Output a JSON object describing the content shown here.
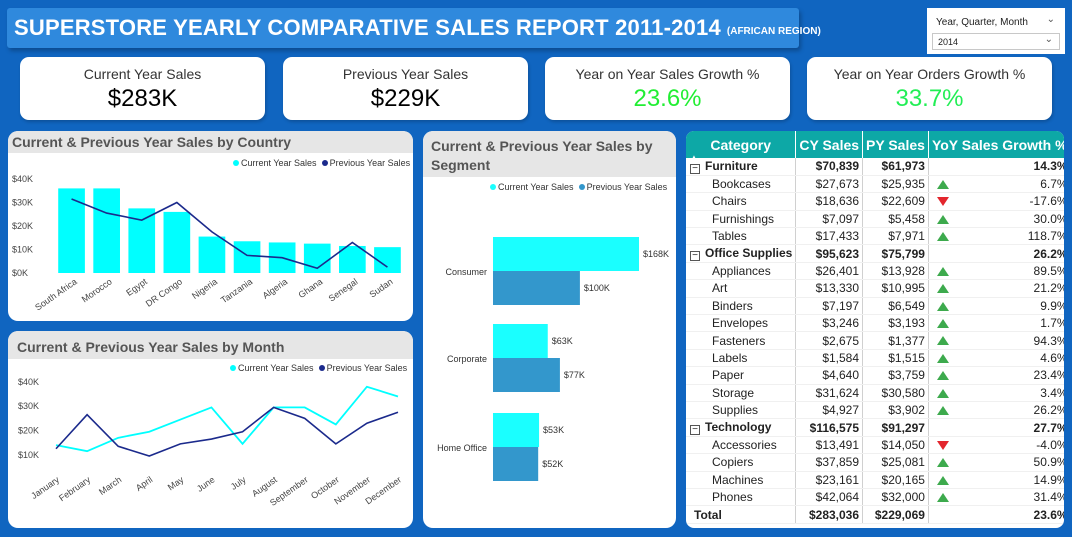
{
  "title": {
    "main": "SUPERSTORE YEARLY COMPARATIVE SALES REPORT 2011-2014",
    "sub": "(AFRICAN REGION)"
  },
  "slicer": {
    "label": "Year, Quarter, Month",
    "selected": "2014"
  },
  "kpis": [
    {
      "label": "Current Year Sales",
      "value": "$283K",
      "color": "#000000"
    },
    {
      "label": "Previous Year Sales",
      "value": "$229K",
      "color": "#000000"
    },
    {
      "label": "Year on Year Sales Growth %",
      "value": "23.6%",
      "color": "#22ee33"
    },
    {
      "label": "Year on Year Orders Growth %",
      "value": "33.7%",
      "color": "#22ee55"
    }
  ],
  "colors": {
    "cy": "#00ffff",
    "py": "#1b2a8c",
    "cy_seg": "#1affff",
    "py_seg": "#3397cc"
  },
  "legend": {
    "cy": "Current Year Sales",
    "py": "Previous Year Sales"
  },
  "chart_data": [
    {
      "type": "bar",
      "title": "Current & Previous Year Sales by Country",
      "categories": [
        "South Africa",
        "Morocco",
        "Egypt",
        "DR Congo",
        "Nigeria",
        "Tanzania",
        "Algeria",
        "Ghana",
        "Senegal",
        "Sudan"
      ],
      "series": [
        {
          "name": "Current Year Sales",
          "type": "bar",
          "values": [
            36000,
            36000,
            27500,
            26000,
            15500,
            13500,
            13000,
            12500,
            11500,
            11000
          ]
        },
        {
          "name": "Previous Year Sales",
          "type": "line",
          "values": [
            31500,
            25500,
            22500,
            30000,
            17500,
            7500,
            6500,
            2000,
            13000,
            2500
          ]
        }
      ],
      "yticks": [
        "$0K",
        "$10K",
        "$20K",
        "$30K",
        "$40K"
      ],
      "ylim": [
        0,
        40000
      ]
    },
    {
      "type": "line",
      "title": "Current & Previous Year Sales by Month",
      "categories": [
        "January",
        "February",
        "March",
        "April",
        "May",
        "June",
        "July",
        "August",
        "September",
        "October",
        "November",
        "December"
      ],
      "series": [
        {
          "name": "Current Year Sales",
          "values": [
            14000,
            11500,
            17000,
            19500,
            24500,
            29500,
            14500,
            29500,
            29500,
            22500,
            38000,
            34000
          ]
        },
        {
          "name": "Previous Year Sales",
          "values": [
            12500,
            26500,
            13500,
            9500,
            14500,
            16500,
            19500,
            29500,
            25000,
            14500,
            23000,
            27500
          ]
        }
      ],
      "yticks": [
        "$10K",
        "$20K",
        "$30K",
        "$40K"
      ],
      "ylim": [
        5000,
        42000
      ]
    },
    {
      "type": "bar",
      "orientation": "horizontal",
      "title": "Current & Previous Year Sales by Segment",
      "categories": [
        "Consumer",
        "Corporate",
        "Home Office"
      ],
      "series": [
        {
          "name": "Current Year Sales",
          "values": [
            168,
            63,
            53
          ],
          "labels": [
            "$168K",
            "$63K",
            "$53K"
          ]
        },
        {
          "name": "Previous Year Sales",
          "values": [
            100,
            77,
            52
          ],
          "labels": [
            "$100K",
            "$77K",
            "$52K"
          ]
        }
      ]
    }
  ],
  "table": {
    "headers": [
      "Category",
      "CY Sales",
      "PY Sales",
      "YoY Sales Growth %"
    ],
    "rows": [
      {
        "level": 0,
        "name": "Furniture",
        "cy": "$70,839",
        "py": "$61,973",
        "growth": "14.3%",
        "trend": ""
      },
      {
        "level": 1,
        "name": "Bookcases",
        "cy": "$27,673",
        "py": "$25,935",
        "growth": "6.7%",
        "trend": "up"
      },
      {
        "level": 1,
        "name": "Chairs",
        "cy": "$18,636",
        "py": "$22,609",
        "growth": "-17.6%",
        "trend": "down"
      },
      {
        "level": 1,
        "name": "Furnishings",
        "cy": "$7,097",
        "py": "$5,458",
        "growth": "30.0%",
        "trend": "up"
      },
      {
        "level": 1,
        "name": "Tables",
        "cy": "$17,433",
        "py": "$7,971",
        "growth": "118.7%",
        "trend": "up"
      },
      {
        "level": 0,
        "name": "Office Supplies",
        "cy": "$95,623",
        "py": "$75,799",
        "growth": "26.2%",
        "trend": ""
      },
      {
        "level": 1,
        "name": "Appliances",
        "cy": "$26,401",
        "py": "$13,928",
        "growth": "89.5%",
        "trend": "up"
      },
      {
        "level": 1,
        "name": "Art",
        "cy": "$13,330",
        "py": "$10,995",
        "growth": "21.2%",
        "trend": "up"
      },
      {
        "level": 1,
        "name": "Binders",
        "cy": "$7,197",
        "py": "$6,549",
        "growth": "9.9%",
        "trend": "up"
      },
      {
        "level": 1,
        "name": "Envelopes",
        "cy": "$3,246",
        "py": "$3,193",
        "growth": "1.7%",
        "trend": "up"
      },
      {
        "level": 1,
        "name": "Fasteners",
        "cy": "$2,675",
        "py": "$1,377",
        "growth": "94.3%",
        "trend": "up"
      },
      {
        "level": 1,
        "name": "Labels",
        "cy": "$1,584",
        "py": "$1,515",
        "growth": "4.6%",
        "trend": "up"
      },
      {
        "level": 1,
        "name": "Paper",
        "cy": "$4,640",
        "py": "$3,759",
        "growth": "23.4%",
        "trend": "up"
      },
      {
        "level": 1,
        "name": "Storage",
        "cy": "$31,624",
        "py": "$30,580",
        "growth": "3.4%",
        "trend": "up"
      },
      {
        "level": 1,
        "name": "Supplies",
        "cy": "$4,927",
        "py": "$3,902",
        "growth": "26.2%",
        "trend": "up"
      },
      {
        "level": 0,
        "name": "Technology",
        "cy": "$116,575",
        "py": "$91,297",
        "growth": "27.7%",
        "trend": ""
      },
      {
        "level": 1,
        "name": "Accessories",
        "cy": "$13,491",
        "py": "$14,050",
        "growth": "-4.0%",
        "trend": "down"
      },
      {
        "level": 1,
        "name": "Copiers",
        "cy": "$37,859",
        "py": "$25,081",
        "growth": "50.9%",
        "trend": "up"
      },
      {
        "level": 1,
        "name": "Machines",
        "cy": "$23,161",
        "py": "$20,165",
        "growth": "14.9%",
        "trend": "up"
      },
      {
        "level": 1,
        "name": "Phones",
        "cy": "$42,064",
        "py": "$32,000",
        "growth": "31.4%",
        "trend": "up"
      }
    ],
    "total": {
      "name": "Total",
      "cy": "$283,036",
      "py": "$229,069",
      "growth": "23.6%"
    }
  }
}
